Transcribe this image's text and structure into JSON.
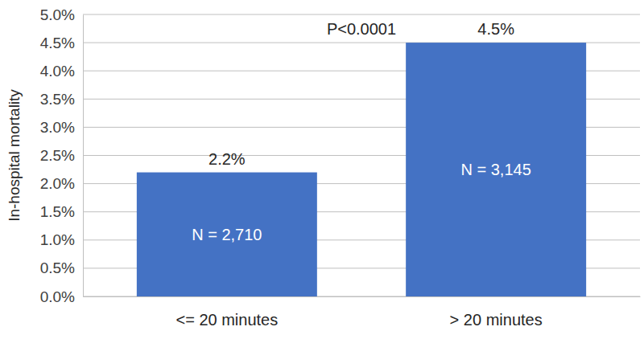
{
  "chart_data": {
    "type": "bar",
    "y_label": "In-hospital mortality",
    "categories": [
      "<= 20 minutes",
      "> 20 minutes"
    ],
    "values": [
      2.2,
      4.5
    ],
    "value_labels": [
      "2.2%",
      "4.5%"
    ],
    "data_labels": true,
    "n_labels": [
      "N = 2,710",
      "N = 3,145"
    ],
    "annotations": [
      "P<0.0001"
    ],
    "color": "#4472c4",
    "ylim": [
      0,
      5
    ],
    "yticks": [
      {
        "value": 0,
        "label": "0.0%"
      },
      {
        "value": 0.5,
        "label": "0.5%"
      },
      {
        "value": 1,
        "label": "1.0%"
      },
      {
        "value": 1.5,
        "label": "1.5%"
      },
      {
        "value": 2,
        "label": "2.0%"
      },
      {
        "value": 2.5,
        "label": "2.5%"
      },
      {
        "value": 3,
        "label": "3.0%"
      },
      {
        "value": 3.5,
        "label": "3.5%"
      },
      {
        "value": 4,
        "label": "4.0%"
      },
      {
        "value": 4.5,
        "label": "4.5%"
      },
      {
        "value": 5,
        "label": "5.0%"
      }
    ],
    "grid": true
  }
}
